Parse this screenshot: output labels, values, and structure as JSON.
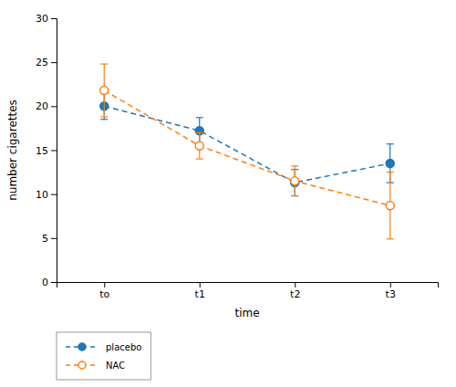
{
  "chart_data": {
    "type": "line",
    "xlabel": "time",
    "ylabel": "number cigarettes",
    "categories": [
      "to",
      "t1",
      "t2",
      "t3"
    ],
    "series": [
      {
        "name": "placebo",
        "values": [
          20.0,
          17.2,
          11.3,
          13.5
        ],
        "errors": [
          1.5,
          1.5,
          1.5,
          2.2
        ],
        "marker": "filled-circle",
        "line_style": "dashed"
      },
      {
        "name": "NAC",
        "values": [
          21.8,
          15.5,
          11.5,
          8.7
        ],
        "errors": [
          3.0,
          1.5,
          1.7,
          3.8
        ],
        "marker": "open-circle",
        "line_style": "dashed"
      }
    ],
    "ylim": [
      0,
      30
    ],
    "yticks": [
      0,
      5,
      10,
      15,
      20,
      25,
      30
    ],
    "grid": false,
    "legend": "bottom"
  }
}
